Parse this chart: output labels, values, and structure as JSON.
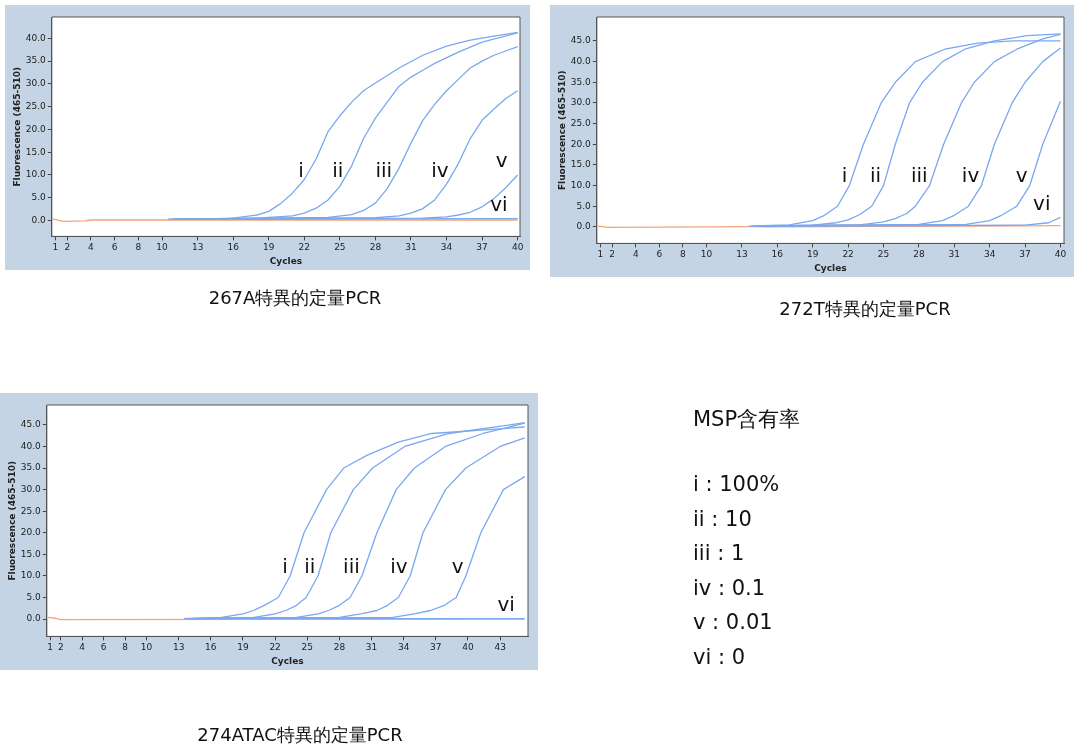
{
  "chart_data": [
    {
      "type": "line",
      "title": "267A特異的定量PCR",
      "xlabel": "Cycles",
      "ylabel": "Fluorescence (465-510)",
      "xlim": [
        0.7,
        40.2
      ],
      "ylim": [
        -3.5,
        44.7
      ],
      "xticks": [
        1,
        2,
        4,
        6,
        8,
        10,
        13,
        16,
        19,
        22,
        25,
        28,
        31,
        34,
        37,
        40
      ],
      "yticks": [
        {
          "value": 0,
          "label": "0.0"
        },
        {
          "value": 5,
          "label": "5.0"
        },
        {
          "value": 10,
          "label": "10.0"
        },
        {
          "value": 15,
          "label": "15.0"
        },
        {
          "value": 20,
          "label": "20.0"
        },
        {
          "value": 25,
          "label": "25.0"
        },
        {
          "value": 30,
          "label": "30.0"
        },
        {
          "value": 35,
          "label": "35.0"
        },
        {
          "value": 40,
          "label": "40.0"
        }
      ],
      "series": [
        {
          "name": "i",
          "color": "#7aa8f0",
          "x": [
            10.5,
            15,
            16,
            18,
            19,
            20,
            21,
            22,
            23,
            24,
            25,
            26,
            27,
            28,
            30,
            32,
            34,
            36,
            38,
            40
          ],
          "values": [
            0.3,
            0.3,
            0.5,
            1.2,
            2,
            3.7,
            6,
            9,
            13.5,
            19.5,
            23,
            26,
            28.5,
            30.2,
            33.5,
            36.3,
            38.3,
            39.6,
            40.5,
            41.3
          ]
        },
        {
          "name": "ii",
          "color": "#7aa8f0",
          "x": [
            10.7,
            18,
            21,
            22,
            23,
            24,
            25,
            26,
            27,
            28,
            29,
            30,
            31,
            32,
            33,
            35,
            37,
            40
          ],
          "values": [
            0.3,
            0.5,
            1,
            1.6,
            2.7,
            4.5,
            7.5,
            12,
            18,
            22.5,
            26,
            29.5,
            31.5,
            33,
            34.5,
            37,
            39.2,
            41.2
          ]
        },
        {
          "name": "iii",
          "color": "#7aa8f0",
          "x": [
            10.9,
            24,
            26,
            27,
            28,
            29,
            30,
            31,
            32,
            33,
            34,
            35,
            36,
            37,
            38,
            40
          ],
          "values": [
            0.3,
            0.7,
            1.3,
            2.2,
            3.8,
            7,
            11.5,
            17,
            22,
            25.5,
            28.5,
            31,
            33.5,
            35,
            36.3,
            38.2
          ]
        },
        {
          "name": "iv",
          "color": "#7aa8f0",
          "x": [
            11.1,
            28,
            30,
            31,
            32,
            33,
            34,
            35,
            36,
            37,
            38,
            39,
            40
          ],
          "values": [
            0.3,
            0.6,
            1,
            1.6,
            2.6,
            4.5,
            8,
            12.5,
            18,
            22,
            24.5,
            26.8,
            28.5
          ]
        },
        {
          "name": "v",
          "color": "#7aa8f0",
          "x": [
            11.3,
            32,
            34,
            35,
            36,
            37,
            38,
            39,
            40
          ],
          "values": [
            0.3,
            0.5,
            0.8,
            1.2,
            1.8,
            3,
            4.8,
            7.2,
            10
          ]
        },
        {
          "name": "vi",
          "color": "#7aa8f0",
          "x": [
            11.5,
            40
          ],
          "values": [
            0.3,
            0.4
          ]
        },
        {
          "color": "#f5a47a",
          "x": [
            0.8,
            1.7,
            3.5,
            4,
            40
          ],
          "values": [
            0.3,
            -0.2,
            -0.1,
            0.1,
            0.1
          ]
        }
      ]
    },
    {
      "type": "line",
      "title": "272T特異的定量PCR",
      "xlabel": "Cycles",
      "ylabel": "Fluorescence (465-510)",
      "xlim": [
        0.7,
        40.3
      ],
      "ylim": [
        -4,
        50.8
      ],
      "xticks": [
        1,
        2,
        4,
        6,
        8,
        10,
        13,
        16,
        19,
        22,
        25,
        28,
        31,
        34,
        37,
        40
      ],
      "yticks": [
        {
          "value": 0,
          "label": "0.0"
        },
        {
          "value": 5,
          "label": "5.0"
        },
        {
          "value": 10,
          "label": "10.0"
        },
        {
          "value": 15,
          "label": "15.0"
        },
        {
          "value": 20,
          "label": "20.0"
        },
        {
          "value": 25,
          "label": "25.0"
        },
        {
          "value": 30,
          "label": "30.0"
        },
        {
          "value": 35,
          "label": "35.0"
        },
        {
          "value": 40,
          "label": "40.0"
        },
        {
          "value": 45,
          "label": "45.0"
        }
      ],
      "series": [
        {
          "name": "i",
          "color": "#7aa8f0",
          "x": [
            13.6,
            17,
            19,
            20,
            21.1,
            22.1,
            23.3,
            24.8,
            26,
            27.7,
            30.2,
            33,
            36,
            40
          ],
          "values": [
            0.2,
            0.5,
            1.5,
            2.8,
            5,
            10,
            20,
            30,
            35,
            40,
            43,
            44.5,
            45,
            45
          ]
        },
        {
          "name": "ii",
          "color": "#7aa8f0",
          "x": [
            13.8,
            19,
            21,
            22,
            23,
            24,
            25,
            26,
            27.2,
            28.3,
            30,
            31.9,
            34.4,
            37.2,
            40
          ],
          "values": [
            0.2,
            0.4,
            1,
            1.7,
            3,
            5,
            10,
            20,
            30,
            35,
            40,
            43,
            45,
            46.3,
            46.7
          ]
        },
        {
          "name": "iii",
          "color": "#7aa8f0",
          "x": [
            14,
            23,
            25,
            26,
            27,
            27.7,
            28.9,
            30.1,
            31.6,
            32.7,
            34.4,
            36.3,
            38.5,
            40
          ],
          "values": [
            0.2,
            0.5,
            1.2,
            2,
            3.3,
            5,
            10,
            20,
            30,
            35,
            40,
            43,
            45.5,
            46.6
          ]
        },
        {
          "name": "iv",
          "color": "#7aa8f0",
          "x": [
            14.2,
            28,
            30,
            31,
            32.2,
            33.3,
            34.4,
            35.9,
            37,
            38.5,
            40
          ],
          "values": [
            0.2,
            0.6,
            1.5,
            2.8,
            5,
            10,
            20,
            30,
            35,
            40,
            43.3
          ]
        },
        {
          "name": "v",
          "color": "#7aa8f0",
          "x": [
            14.4,
            32,
            34,
            35,
            36.3,
            37.4,
            38.5,
            40
          ],
          "values": [
            0.2,
            0.6,
            1.5,
            2.8,
            5,
            10,
            20,
            30.4
          ]
        },
        {
          "name": "vi",
          "color": "#7aa8f0",
          "x": [
            14.6,
            37,
            39,
            40
          ],
          "values": [
            0.2,
            0.4,
            1,
            2.3
          ]
        },
        {
          "color": "#f5a47a",
          "x": [
            0.8,
            1.7,
            40
          ],
          "values": [
            0.2,
            -0.1,
            0.3
          ]
        }
      ]
    },
    {
      "type": "line",
      "title": "274ATAC特異的定量PCR",
      "xlabel": "Cycles",
      "ylabel": "Fluorescence (465-510)",
      "xlim": [
        0.7,
        45.6
      ],
      "ylim": [
        -4,
        49.6
      ],
      "xticks": [
        1,
        2,
        4,
        6,
        8,
        10,
        13,
        16,
        19,
        22,
        25,
        28,
        31,
        34,
        37,
        40,
        43
      ],
      "yticks": [
        {
          "value": 0,
          "label": "0.0"
        },
        {
          "value": 5,
          "label": "5.0"
        },
        {
          "value": 10,
          "label": "10.0"
        },
        {
          "value": 15,
          "label": "15.0"
        },
        {
          "value": 20,
          "label": "20.0"
        },
        {
          "value": 25,
          "label": "25.0"
        },
        {
          "value": 30,
          "label": "30.0"
        },
        {
          "value": 35,
          "label": "35.0"
        },
        {
          "value": 40,
          "label": "40.0"
        },
        {
          "value": 45,
          "label": "45.0"
        }
      ],
      "series": [
        {
          "name": "i",
          "color": "#7aa8f0",
          "x": [
            13.5,
            17,
            19,
            20,
            21,
            22.3,
            23.4,
            24.7,
            26.8,
            28.4,
            30.6,
            33.5,
            36.6,
            45.3
          ],
          "values": [
            0.1,
            0.4,
            1.2,
            2,
            3.2,
            5,
            10,
            20,
            30,
            35,
            38,
            41,
            43,
            44.5
          ]
        },
        {
          "name": "ii",
          "color": "#7aa8f0",
          "x": [
            13.7,
            20,
            22,
            23,
            24,
            24.9,
            26,
            27.2,
            29.3,
            31.1,
            34.1,
            38.2,
            45.3
          ],
          "values": [
            0.1,
            0.4,
            1.2,
            2,
            3.2,
            5,
            10,
            20,
            30,
            35,
            40,
            43,
            45.5
          ]
        },
        {
          "name": "iii",
          "color": "#7aa8f0",
          "x": [
            13.9,
            24,
            26,
            27,
            28,
            29,
            30.1,
            31.5,
            33.3,
            35,
            37.9,
            41.4,
            45.3
          ],
          "values": [
            0.1,
            0.4,
            1.2,
            2,
            3.2,
            5,
            10,
            20,
            30,
            35,
            40,
            43,
            45.4
          ]
        },
        {
          "name": "iv",
          "color": "#7aa8f0",
          "x": [
            14.1,
            28,
            30,
            31.5,
            32.5,
            33.5,
            34.6,
            35.8,
            37.9,
            39.8,
            43,
            45.3
          ],
          "values": [
            0.1,
            0.4,
            1.2,
            2,
            3.2,
            5,
            10,
            20,
            30,
            35,
            40,
            42
          ]
        },
        {
          "name": "v",
          "color": "#7aa8f0",
          "x": [
            14.3,
            33,
            35,
            36.5,
            37.8,
            38.9,
            39.8,
            41.2,
            43.3,
            45.3
          ],
          "values": [
            0.1,
            0.4,
            1.2,
            2,
            3.2,
            5,
            10,
            20,
            30,
            33
          ]
        },
        {
          "name": "vi",
          "color": "#7aa8f0",
          "x": [
            14.5,
            45.3
          ],
          "values": [
            0.1,
            0.1
          ]
        },
        {
          "color": "#f5a47a",
          "x": [
            0.8,
            1.5,
            2,
            45.3
          ],
          "values": [
            0.4,
            0.2,
            -0.1,
            0
          ]
        }
      ]
    },
    {
      "type": "other",
      "title": "MSP含有率",
      "annotations": [
        "i : 100%",
        "ii : 10",
        "iii : 1",
        "iv : 0.1",
        "v : 0.01",
        "vi : 0"
      ]
    }
  ]
}
